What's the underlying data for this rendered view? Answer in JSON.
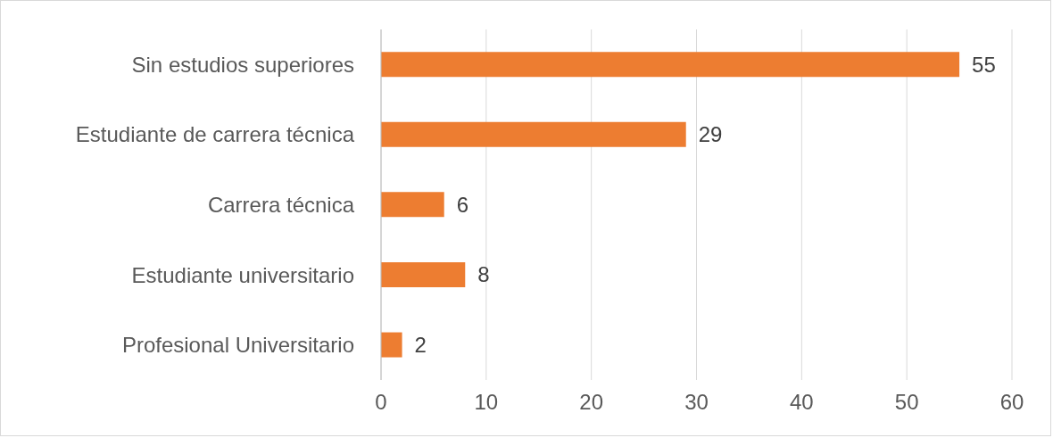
{
  "chart_data": {
    "type": "bar",
    "orientation": "horizontal",
    "categories": [
      "Sin estudios superiores",
      "Estudiante de carrera técnica",
      "Carrera técnica",
      "Estudiante universitario",
      "Profesional Universitario"
    ],
    "values": [
      55,
      29,
      6,
      8,
      2
    ],
    "color": "#ed7d31",
    "xlim": [
      0,
      60
    ],
    "xticks": [
      0,
      10,
      20,
      30,
      40,
      50,
      60
    ],
    "grid": "x",
    "data_labels": true,
    "legend": false
  }
}
